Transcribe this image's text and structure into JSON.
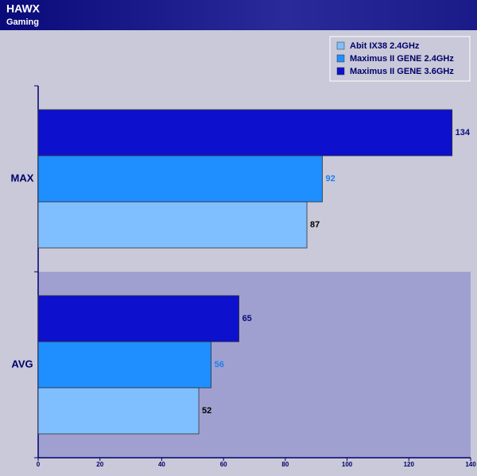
{
  "chart_data": {
    "type": "hbar",
    "title": "HAWX",
    "subtitle": "Gaming",
    "categories": [
      "MAX",
      "AVG"
    ],
    "series": [
      {
        "name": "Abit IX38 2.4GHz",
        "color": "#80bfff",
        "values": [
          87,
          52
        ]
      },
      {
        "name": "Maximus II GENE 2.4GHz",
        "color": "#1f8fff",
        "values": [
          92,
          56
        ]
      },
      {
        "name": "Maximus II GENE 3.6GHz",
        "color": "#0d10cc",
        "values": [
          134,
          65
        ]
      }
    ],
    "xlim": [
      0,
      140
    ],
    "xticks": [
      0,
      20,
      40,
      60,
      80,
      100,
      120,
      140
    ],
    "legend": "top-right"
  }
}
